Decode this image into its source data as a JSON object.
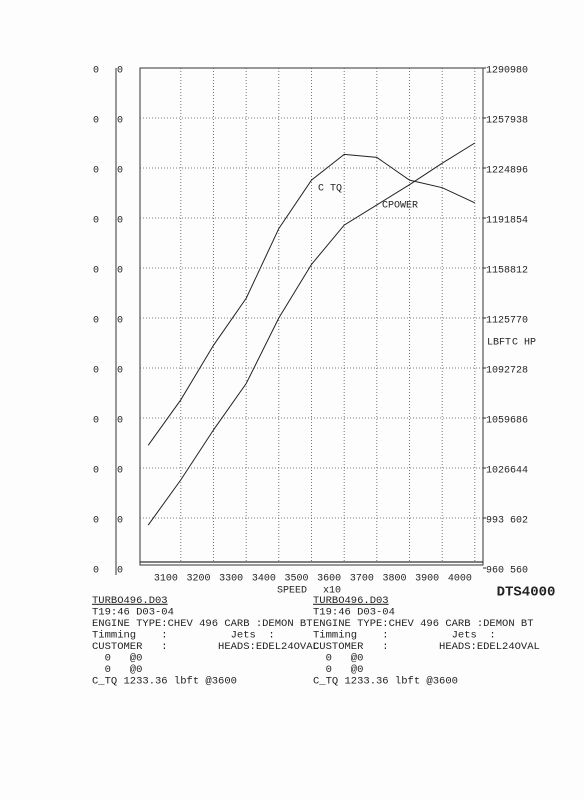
{
  "chart_data": {
    "type": "line",
    "x_axis_label": "SPEED",
    "x_axis_unit": "x10",
    "y_axis_label": "LBFT",
    "y2_axis_label": "C HP",
    "x": [
      3000,
      3100,
      3200,
      3300,
      3400,
      3500,
      3600,
      3700,
      3800,
      3900,
      4000
    ],
    "xlim": [
      2975,
      4025
    ],
    "xticks": [
      3100,
      3200,
      3300,
      3400,
      3500,
      3600,
      3700,
      3800,
      3900,
      4000
    ],
    "ylim": [
      960,
      1290
    ],
    "yticks": [
      960,
      993,
      1026,
      1059,
      1092,
      1125,
      1158,
      1191,
      1224,
      1257,
      1290
    ],
    "y2lim": [
      560,
      980
    ],
    "y2ticks": [
      560,
      602,
      644,
      686,
      728,
      770,
      812,
      854,
      896,
      938,
      980
    ],
    "left_axis_1_ticks": [
      0,
      0,
      0,
      0,
      0,
      0,
      0,
      0,
      0,
      0,
      0
    ],
    "left_axis_2_ticks": [
      0,
      0,
      0,
      0,
      0,
      0,
      0,
      0,
      0,
      0,
      0
    ],
    "grid": true,
    "series": [
      {
        "name": "C TQ",
        "color": "#222222",
        "values": [
          1041,
          1071,
          1107,
          1138,
          1184,
          1216,
          1233,
          1231,
          1216,
          1211,
          1201
        ]
      },
      {
        "name": "CPOWER",
        "color": "#222222",
        "axis": "y2",
        "values": [
          596,
          634,
          676,
          715,
          770,
          815,
          848,
          865,
          882,
          900,
          917
        ]
      }
    ],
    "logo": "DTS4000",
    "info_blocks": [
      [
        "TURBO496.D03",
        "T19:46 D03-04",
        "ENGINE TYPE:CHEV 496 CARB :DEMON BT",
        "Timming    :          Jets  :",
        "CUSTOMER   :        HEADS:EDEL24OVAL",
        "  0   @0",
        "  0   @0",
        "C_TQ 1233.36 lbft @3600"
      ],
      [
        "TURBO496.D03",
        "T19:46 D03-04",
        "ENGINE TYPE:CHEV 496 CARB :DEMON BT",
        "Timming    :          Jets  :",
        "CUSTOMER   :        HEADS:EDEL24OVAL",
        "  0   @0",
        "  0   @0",
        "C_TQ 1233.36 lbft @3600"
      ]
    ]
  }
}
